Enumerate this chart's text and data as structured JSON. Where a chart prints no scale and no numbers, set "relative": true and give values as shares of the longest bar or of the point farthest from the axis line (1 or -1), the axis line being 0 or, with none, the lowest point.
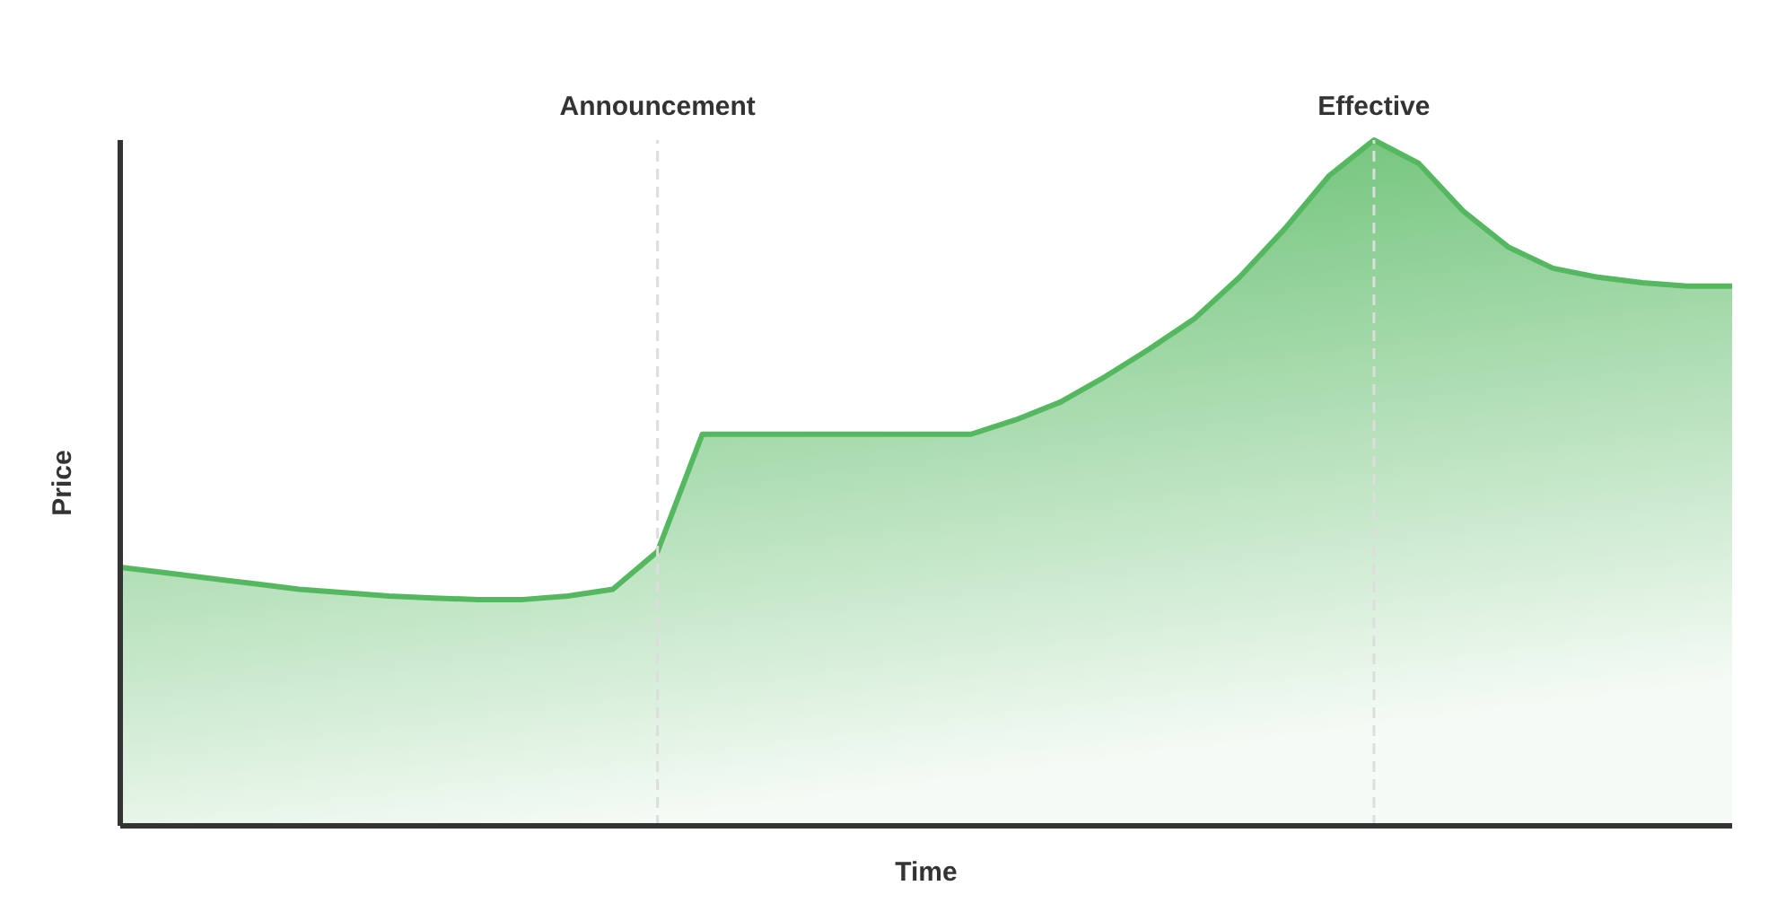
{
  "chart_data": {
    "type": "area",
    "relative": true,
    "xlabel": "Time",
    "ylabel": "Price",
    "categories": [
      null,
      null,
      null,
      null,
      null,
      null,
      null,
      null,
      null,
      null,
      null,
      null,
      null,
      null,
      null,
      null,
      null,
      null,
      null,
      null,
      null,
      null,
      null,
      null,
      null,
      null,
      null,
      null,
      null,
      null,
      null,
      null,
      null,
      null,
      null,
      null,
      null
    ],
    "series": [
      {
        "color": "#55b860",
        "values": [
          0.377,
          0.369,
          0.361,
          0.353,
          0.345,
          0.34,
          0.335,
          0.332,
          0.33,
          0.33,
          0.335,
          0.345,
          0.4,
          0.571,
          0.571,
          0.571,
          0.571,
          0.571,
          0.571,
          0.571,
          0.592,
          0.618,
          0.655,
          0.696,
          0.74,
          0.8,
          0.87,
          0.948,
          1,
          0.966,
          0.896,
          0.844,
          0.813,
          0.8,
          0.792,
          0.787,
          0.787
        ]
      }
    ],
    "annotations": [
      "Announcement",
      "Effective"
    ],
    "grid": false
  }
}
